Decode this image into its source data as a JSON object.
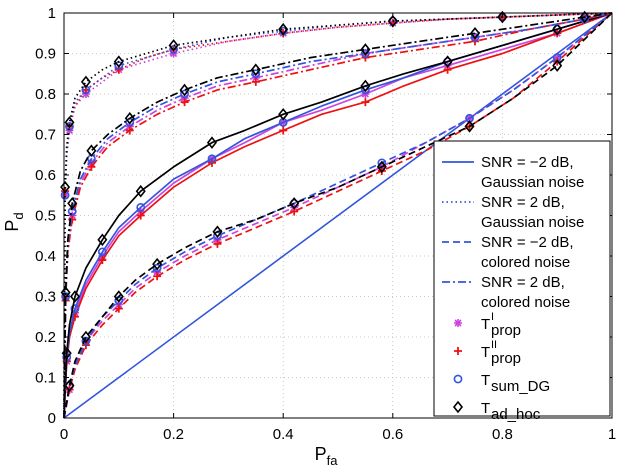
{
  "chart_data": {
    "type": "line",
    "title": "",
    "xlabel": "P",
    "xlabel_sub": "fa",
    "ylabel": "P",
    "ylabel_sub": "d",
    "xlim": [
      0,
      1
    ],
    "ylim": [
      0,
      1
    ],
    "grid": true,
    "x_ticks": [
      "0",
      "0.2",
      "0.4",
      "0.6",
      "0.8",
      "1"
    ],
    "y_ticks": [
      "0",
      "0.1",
      "0.2",
      "0.3",
      "0.4",
      "0.5",
      "0.6",
      "0.7",
      "0.8",
      "0.9",
      "1"
    ],
    "chance_line": {
      "x": [
        0,
        1
      ],
      "y": [
        0,
        1
      ],
      "color": "#3355dd"
    },
    "colors": {
      "black": "#000000",
      "red": "#ee1111",
      "blue": "#3355dd",
      "magenta": "#cc44dd"
    },
    "legend_position": "right",
    "legend": {
      "lines": [
        {
          "label1": "SNR = −2 dB,",
          "label2": "Gaussian noise",
          "dash": "solid"
        },
        {
          "label1": "SNR = 2 dB,",
          "label2": "Gaussian noise",
          "dash": "dotted"
        },
        {
          "label1": "SNR = −2 dB,",
          "label2": "colored noise",
          "dash": "dashed"
        },
        {
          "label1": "SNR = 2 dB,",
          "label2": "colored noise",
          "dash": "dashdot"
        }
      ],
      "markers": [
        {
          "base": "T",
          "sup": "I",
          "sub": "prop",
          "marker": "star",
          "color": "#cc44dd"
        },
        {
          "base": "T",
          "sup": "II",
          "sub": "prop",
          "marker": "plus",
          "color": "#ee1111"
        },
        {
          "base": "T",
          "sup": "",
          "sub": "sum_DG",
          "marker": "circle",
          "color": "#3355dd"
        },
        {
          "base": "T",
          "sup": "",
          "sub": "ad_hoc",
          "marker": "diamond",
          "color": "#000000"
        }
      ]
    },
    "scenarios": [
      {
        "name": "SNR = -2 dB, Gaussian noise",
        "dash": "solid",
        "series": [
          {
            "detector": "T_prop^I",
            "color": "#cc44dd",
            "marker": "star",
            "x": [
              0,
              0.005,
              0.01,
              0.02,
              0.04,
              0.07,
              0.1,
              0.14,
              0.2,
              0.27,
              0.33,
              0.4,
              0.47,
              0.55,
              0.62,
              0.7,
              0.8,
              0.9,
              1.0
            ],
            "y": [
              0,
              0.14,
              0.2,
              0.26,
              0.33,
              0.4,
              0.46,
              0.51,
              0.58,
              0.64,
              0.68,
              0.73,
              0.76,
              0.8,
              0.84,
              0.87,
              0.91,
              0.95,
              1.0
            ]
          },
          {
            "detector": "T_prop^II",
            "color": "#ee1111",
            "marker": "plus",
            "x": [
              0,
              0.005,
              0.01,
              0.02,
              0.04,
              0.07,
              0.1,
              0.14,
              0.2,
              0.27,
              0.33,
              0.4,
              0.47,
              0.55,
              0.62,
              0.7,
              0.8,
              0.9,
              1.0
            ],
            "y": [
              0,
              0.14,
              0.2,
              0.25,
              0.32,
              0.39,
              0.45,
              0.5,
              0.57,
              0.63,
              0.67,
              0.71,
              0.75,
              0.78,
              0.82,
              0.86,
              0.9,
              0.95,
              1.0
            ]
          },
          {
            "detector": "T_sum_DG",
            "color": "#3355dd",
            "marker": "circle",
            "x": [
              0,
              0.005,
              0.01,
              0.02,
              0.04,
              0.07,
              0.1,
              0.14,
              0.2,
              0.27,
              0.33,
              0.4,
              0.47,
              0.55,
              0.62,
              0.7,
              0.8,
              0.9,
              1.0
            ],
            "y": [
              0,
              0.15,
              0.21,
              0.27,
              0.34,
              0.41,
              0.47,
              0.52,
              0.59,
              0.64,
              0.69,
              0.73,
              0.77,
              0.81,
              0.84,
              0.88,
              0.92,
              0.96,
              1.0
            ]
          },
          {
            "detector": "T_ad_hoc",
            "color": "#000000",
            "marker": "diamond",
            "x": [
              0,
              0.005,
              0.01,
              0.02,
              0.04,
              0.07,
              0.1,
              0.14,
              0.2,
              0.27,
              0.33,
              0.4,
              0.47,
              0.55,
              0.62,
              0.7,
              0.8,
              0.9,
              1.0
            ],
            "y": [
              0,
              0.16,
              0.23,
              0.3,
              0.37,
              0.44,
              0.5,
              0.56,
              0.62,
              0.68,
              0.71,
              0.75,
              0.78,
              0.82,
              0.85,
              0.88,
              0.92,
              0.96,
              1.0
            ]
          }
        ]
      },
      {
        "name": "SNR = 2 dB, Gaussian noise",
        "dash": "dotted",
        "series": [
          {
            "detector": "T_prop^I",
            "color": "#cc44dd",
            "marker": "star",
            "x": [
              0,
              0.002,
              0.005,
              0.01,
              0.02,
              0.04,
              0.07,
              0.1,
              0.15,
              0.2,
              0.3,
              0.4,
              0.5,
              0.6,
              0.7,
              0.8,
              0.9,
              1.0
            ],
            "y": [
              0,
              0.55,
              0.65,
              0.71,
              0.77,
              0.8,
              0.83,
              0.86,
              0.88,
              0.9,
              0.93,
              0.95,
              0.965,
              0.975,
              0.985,
              0.99,
              0.995,
              1.0
            ]
          },
          {
            "detector": "T_prop^II",
            "color": "#ee1111",
            "marker": "plus",
            "x": [
              0,
              0.002,
              0.005,
              0.01,
              0.02,
              0.04,
              0.07,
              0.1,
              0.15,
              0.2,
              0.3,
              0.4,
              0.5,
              0.6,
              0.7,
              0.8,
              0.9,
              1.0
            ],
            "y": [
              0,
              0.56,
              0.66,
              0.72,
              0.77,
              0.81,
              0.84,
              0.86,
              0.89,
              0.91,
              0.93,
              0.95,
              0.965,
              0.975,
              0.985,
              0.99,
              0.995,
              1.0
            ]
          },
          {
            "detector": "T_sum_DG",
            "color": "#3355dd",
            "marker": "circle",
            "x": [
              0,
              0.002,
              0.005,
              0.01,
              0.02,
              0.04,
              0.07,
              0.1,
              0.15,
              0.2,
              0.3,
              0.4,
              0.5,
              0.6,
              0.7,
              0.8,
              0.9,
              1.0
            ],
            "y": [
              0,
              0.55,
              0.65,
              0.72,
              0.78,
              0.81,
              0.84,
              0.87,
              0.89,
              0.91,
              0.94,
              0.955,
              0.97,
              0.98,
              0.985,
              0.99,
              0.995,
              1.0
            ]
          },
          {
            "detector": "T_ad_hoc",
            "color": "#000000",
            "marker": "diamond",
            "x": [
              0,
              0.002,
              0.005,
              0.01,
              0.02,
              0.04,
              0.07,
              0.1,
              0.15,
              0.2,
              0.3,
              0.4,
              0.5,
              0.6,
              0.7,
              0.8,
              0.9,
              1.0
            ],
            "y": [
              0,
              0.57,
              0.67,
              0.73,
              0.79,
              0.83,
              0.86,
              0.88,
              0.9,
              0.92,
              0.94,
              0.96,
              0.97,
              0.98,
              0.985,
              0.99,
              0.995,
              1.0
            ]
          }
        ]
      },
      {
        "name": "SNR = -2 dB, colored noise",
        "dash": "dashed",
        "series": [
          {
            "detector": "T_prop^I",
            "color": "#cc44dd",
            "marker": "star",
            "x": [
              0,
              0.01,
              0.02,
              0.04,
              0.07,
              0.1,
              0.13,
              0.17,
              0.22,
              0.28,
              0.35,
              0.42,
              0.5,
              0.58,
              0.66,
              0.74,
              0.82,
              0.9,
              1.0
            ],
            "y": [
              0,
              0.07,
              0.13,
              0.19,
              0.24,
              0.28,
              0.32,
              0.36,
              0.4,
              0.44,
              0.48,
              0.52,
              0.57,
              0.62,
              0.68,
              0.74,
              0.81,
              0.89,
              1.0
            ]
          },
          {
            "detector": "T_prop^II",
            "color": "#ee1111",
            "marker": "plus",
            "x": [
              0,
              0.01,
              0.02,
              0.04,
              0.07,
              0.1,
              0.13,
              0.17,
              0.22,
              0.28,
              0.35,
              0.42,
              0.5,
              0.58,
              0.66,
              0.74,
              0.82,
              0.9,
              1.0
            ],
            "y": [
              0,
              0.07,
              0.12,
              0.18,
              0.23,
              0.27,
              0.31,
              0.35,
              0.39,
              0.43,
              0.47,
              0.51,
              0.56,
              0.61,
              0.66,
              0.72,
              0.79,
              0.88,
              1.0
            ]
          },
          {
            "detector": "T_sum_DG",
            "color": "#3355dd",
            "marker": "circle",
            "x": [
              0,
              0.01,
              0.02,
              0.04,
              0.07,
              0.1,
              0.13,
              0.17,
              0.22,
              0.28,
              0.35,
              0.42,
              0.5,
              0.58,
              0.66,
              0.74,
              0.82,
              0.9,
              1.0
            ],
            "y": [
              0,
              0.08,
              0.13,
              0.19,
              0.25,
              0.29,
              0.33,
              0.37,
              0.41,
              0.45,
              0.49,
              0.53,
              0.58,
              0.63,
              0.68,
              0.74,
              0.81,
              0.89,
              1.0
            ]
          },
          {
            "detector": "T_ad_hoc",
            "color": "#000000",
            "marker": "diamond",
            "x": [
              0,
              0.01,
              0.02,
              0.04,
              0.07,
              0.1,
              0.13,
              0.17,
              0.22,
              0.28,
              0.35,
              0.42,
              0.5,
              0.58,
              0.66,
              0.74,
              0.82,
              0.9,
              1.0
            ],
            "y": [
              0,
              0.08,
              0.14,
              0.2,
              0.25,
              0.3,
              0.34,
              0.38,
              0.42,
              0.46,
              0.49,
              0.53,
              0.57,
              0.62,
              0.67,
              0.72,
              0.79,
              0.87,
              1.0
            ]
          }
        ]
      },
      {
        "name": "SNR = 2 dB, colored noise",
        "dash": "dashdot",
        "series": [
          {
            "detector": "T_prop^I",
            "color": "#cc44dd",
            "marker": "star",
            "x": [
              0,
              0.003,
              0.007,
              0.015,
              0.03,
              0.05,
              0.08,
              0.12,
              0.17,
              0.22,
              0.28,
              0.35,
              0.45,
              0.55,
              0.65,
              0.75,
              0.85,
              0.95,
              1.0
            ],
            "y": [
              0,
              0.3,
              0.42,
              0.5,
              0.58,
              0.63,
              0.68,
              0.72,
              0.76,
              0.79,
              0.82,
              0.84,
              0.87,
              0.9,
              0.92,
              0.94,
              0.96,
              0.985,
              1.0
            ]
          },
          {
            "detector": "T_prop^II",
            "color": "#ee1111",
            "marker": "plus",
            "x": [
              0,
              0.003,
              0.007,
              0.015,
              0.03,
              0.05,
              0.08,
              0.12,
              0.17,
              0.22,
              0.28,
              0.35,
              0.45,
              0.55,
              0.65,
              0.75,
              0.85,
              0.95,
              1.0
            ],
            "y": [
              0,
              0.29,
              0.41,
              0.49,
              0.57,
              0.62,
              0.67,
              0.71,
              0.75,
              0.78,
              0.81,
              0.83,
              0.86,
              0.89,
              0.91,
              0.93,
              0.96,
              0.985,
              1.0
            ]
          },
          {
            "detector": "T_sum_DG",
            "color": "#3355dd",
            "marker": "circle",
            "x": [
              0,
              0.003,
              0.007,
              0.015,
              0.03,
              0.05,
              0.08,
              0.12,
              0.17,
              0.22,
              0.28,
              0.35,
              0.45,
              0.55,
              0.65,
              0.75,
              0.85,
              0.95,
              1.0
            ],
            "y": [
              0,
              0.3,
              0.43,
              0.51,
              0.59,
              0.64,
              0.69,
              0.73,
              0.77,
              0.8,
              0.83,
              0.85,
              0.88,
              0.9,
              0.92,
              0.94,
              0.96,
              0.985,
              1.0
            ]
          },
          {
            "detector": "T_ad_hoc",
            "color": "#000000",
            "marker": "diamond",
            "x": [
              0,
              0.003,
              0.007,
              0.015,
              0.03,
              0.05,
              0.08,
              0.12,
              0.17,
              0.22,
              0.28,
              0.35,
              0.45,
              0.55,
              0.65,
              0.75,
              0.85,
              0.95,
              1.0
            ],
            "y": [
              0,
              0.31,
              0.44,
              0.53,
              0.61,
              0.66,
              0.7,
              0.74,
              0.78,
              0.81,
              0.84,
              0.86,
              0.89,
              0.91,
              0.93,
              0.95,
              0.97,
              0.99,
              1.0
            ]
          }
        ]
      }
    ]
  }
}
